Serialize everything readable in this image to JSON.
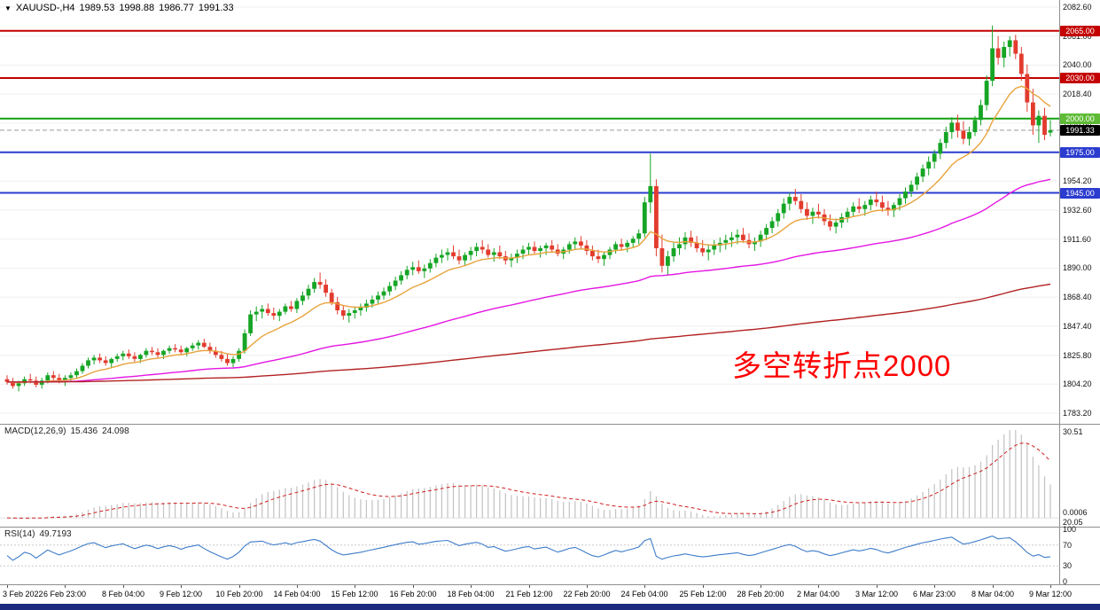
{
  "window": {
    "bottom_bar_color": "#1c2b7e"
  },
  "header": {
    "dropdown_icon": "▼",
    "symbol_period": "XAUUSD-,H4",
    "open": "1989.53",
    "high": "1998.88",
    "low": "1986.77",
    "close": "1991.33"
  },
  "chart_data": {
    "type": "candlestick",
    "symbol": "XAUUSD",
    "timeframe": "H4",
    "up_color": "#16a525",
    "down_color": "#e23b2e",
    "annotation": {
      "text": "多空转折点2000",
      "color": "#fe0000"
    },
    "y_axis": {
      "max": 2087.8,
      "min": 1774.0,
      "tick_labels": [
        "2082.60",
        "2061.00",
        "2040.00",
        "2018.40",
        "1996.80",
        "1975.20",
        "1954.20",
        "1932.60",
        "1911.60",
        "1890.00",
        "1868.40",
        "1847.40",
        "1825.80",
        "1804.20",
        "1783.20"
      ]
    },
    "x_axis": {
      "bars_per_label": 10,
      "tick_labels": [
        "3 Feb 2022",
        "6 Feb 23:00",
        "8 Feb 04:00",
        "9 Feb 12:00",
        "10 Feb 20:00",
        "14 Feb 04:00",
        "15 Feb 12:00",
        "16 Feb 20:00",
        "18 Feb 04:00",
        "21 Feb 12:00",
        "22 Feb 20:00",
        "24 Feb 04:00",
        "25 Feb 12:00",
        "28 Feb 20:00",
        "2 Mar 04:00",
        "3 Mar 12:00",
        "6 Mar 23:00",
        "8 Mar 04:00",
        "9 Mar 12:00"
      ]
    },
    "hlines": [
      {
        "price": 2065.0,
        "label": "2065.00",
        "color": "#c40000"
      },
      {
        "price": 2030.0,
        "label": "2030.00",
        "color": "#c40000"
      },
      {
        "price": 2000.0,
        "label": "2000.00",
        "color": "#12a112",
        "tag_color": "#5fbb36"
      },
      {
        "price": 1975.0,
        "label": "1975.00",
        "color": "#2b3ccf"
      },
      {
        "price": 1945.0,
        "label": "1945.00",
        "color": "#2b3ccf"
      },
      {
        "price": 1991.33,
        "label": "1991.33",
        "color": "#9b9b9b",
        "tag_color": "#000000",
        "style": "current"
      }
    ],
    "overlays": [
      {
        "name": "ma-fast",
        "type": "ema",
        "period": 13,
        "color": "#e8a33d"
      },
      {
        "name": "ma-medium",
        "type": "ema",
        "period": 80,
        "color": "#e316e3"
      },
      {
        "name": "ma-slow",
        "type": "ema",
        "period": 330,
        "color": "#b22222"
      }
    ],
    "indicators": [
      {
        "name": "macd",
        "label": "MACD(12,26,9)",
        "value_main": "15.436",
        "value_signal": "24.098",
        "params": [
          12,
          26,
          9
        ],
        "histogram_color": "#c2c2c2",
        "signal_color": "#cf2020",
        "axis_labels": [
          "30.51",
          "0.0006",
          "20.05"
        ]
      },
      {
        "name": "rsi",
        "label": "RSI(14)",
        "value": "49.7193",
        "period": 14,
        "line_color": "#3e7cc9",
        "levels": [
          70,
          30
        ],
        "axis_labels": [
          "100",
          "70",
          "30",
          "0"
        ]
      }
    ],
    "candles": [
      [
        1807,
        1810,
        1803,
        1805
      ],
      [
        1805,
        1808,
        1800,
        1802
      ],
      [
        1802,
        1806,
        1798,
        1804
      ],
      [
        1804,
        1809,
        1802,
        1807
      ],
      [
        1807,
        1811,
        1804,
        1806
      ],
      [
        1806,
        1809,
        1801,
        1803
      ],
      [
        1803,
        1808,
        1800,
        1806
      ],
      [
        1806,
        1812,
        1804,
        1810
      ],
      [
        1810,
        1813,
        1806,
        1808
      ],
      [
        1808,
        1811,
        1804,
        1806
      ],
      [
        1806,
        1810,
        1802,
        1808
      ],
      [
        1808,
        1812,
        1805,
        1810
      ],
      [
        1810,
        1815,
        1808,
        1813
      ],
      [
        1813,
        1819,
        1811,
        1817
      ],
      [
        1817,
        1823,
        1815,
        1821
      ],
      [
        1821,
        1825,
        1818,
        1823
      ],
      [
        1823,
        1826,
        1819,
        1821
      ],
      [
        1821,
        1824,
        1817,
        1819
      ],
      [
        1819,
        1823,
        1816,
        1822
      ],
      [
        1822,
        1826,
        1820,
        1824
      ],
      [
        1824,
        1828,
        1821,
        1826
      ],
      [
        1826,
        1829,
        1822,
        1824
      ],
      [
        1824,
        1827,
        1820,
        1822
      ],
      [
        1822,
        1826,
        1819,
        1825
      ],
      [
        1825,
        1830,
        1823,
        1828
      ],
      [
        1828,
        1831,
        1825,
        1827
      ],
      [
        1827,
        1830,
        1823,
        1825
      ],
      [
        1825,
        1829,
        1822,
        1828
      ],
      [
        1828,
        1832,
        1826,
        1830
      ],
      [
        1830,
        1833,
        1827,
        1829
      ],
      [
        1829,
        1832,
        1825,
        1827
      ],
      [
        1827,
        1831,
        1824,
        1830
      ],
      [
        1830,
        1834,
        1828,
        1832
      ],
      [
        1832,
        1836,
        1829,
        1834
      ],
      [
        1834,
        1837,
        1830,
        1831
      ],
      [
        1831,
        1834,
        1826,
        1828
      ],
      [
        1828,
        1831,
        1823,
        1825
      ],
      [
        1825,
        1828,
        1820,
        1822
      ],
      [
        1822,
        1826,
        1817,
        1819
      ],
      [
        1819,
        1824,
        1816,
        1822
      ],
      [
        1822,
        1830,
        1820,
        1828
      ],
      [
        1828,
        1844,
        1826,
        1841
      ],
      [
        1841,
        1858,
        1839,
        1855
      ],
      [
        1855,
        1861,
        1850,
        1857
      ],
      [
        1857,
        1862,
        1852,
        1859
      ],
      [
        1859,
        1863,
        1854,
        1856
      ],
      [
        1856,
        1860,
        1851,
        1854
      ],
      [
        1854,
        1859,
        1850,
        1857
      ],
      [
        1857,
        1863,
        1855,
        1861
      ],
      [
        1861,
        1865,
        1857,
        1859
      ],
      [
        1859,
        1867,
        1856,
        1865
      ],
      [
        1865,
        1872,
        1862,
        1869
      ],
      [
        1869,
        1877,
        1866,
        1874
      ],
      [
        1874,
        1882,
        1871,
        1879
      ],
      [
        1879,
        1886,
        1874,
        1877
      ],
      [
        1877,
        1881,
        1868,
        1871
      ],
      [
        1871,
        1874,
        1862,
        1864
      ],
      [
        1864,
        1868,
        1855,
        1858
      ],
      [
        1858,
        1862,
        1851,
        1854
      ],
      [
        1854,
        1859,
        1849,
        1856
      ],
      [
        1856,
        1861,
        1852,
        1858
      ],
      [
        1858,
        1863,
        1854,
        1860
      ],
      [
        1860,
        1866,
        1857,
        1863
      ],
      [
        1863,
        1869,
        1860,
        1866
      ],
      [
        1866,
        1872,
        1863,
        1869
      ],
      [
        1869,
        1875,
        1866,
        1872
      ],
      [
        1872,
        1879,
        1869,
        1876
      ],
      [
        1876,
        1883,
        1873,
        1880
      ],
      [
        1880,
        1887,
        1877,
        1884
      ],
      [
        1884,
        1891,
        1881,
        1888
      ],
      [
        1888,
        1894,
        1884,
        1890
      ],
      [
        1890,
        1895,
        1885,
        1887
      ],
      [
        1887,
        1892,
        1882,
        1889
      ],
      [
        1889,
        1896,
        1886,
        1893
      ],
      [
        1893,
        1900,
        1890,
        1897
      ],
      [
        1897,
        1903,
        1893,
        1899
      ],
      [
        1899,
        1904,
        1895,
        1901
      ],
      [
        1901,
        1906,
        1896,
        1898
      ],
      [
        1898,
        1903,
        1892,
        1895
      ],
      [
        1895,
        1901,
        1891,
        1899
      ],
      [
        1899,
        1905,
        1895,
        1902
      ],
      [
        1902,
        1908,
        1898,
        1905
      ],
      [
        1905,
        1910,
        1900,
        1903
      ],
      [
        1903,
        1907,
        1897,
        1899
      ],
      [
        1899,
        1904,
        1894,
        1901
      ],
      [
        1901,
        1906,
        1896,
        1898
      ],
      [
        1898,
        1902,
        1892,
        1895
      ],
      [
        1895,
        1900,
        1890,
        1897
      ],
      [
        1897,
        1903,
        1893,
        1900
      ],
      [
        1900,
        1906,
        1896,
        1903
      ],
      [
        1903,
        1908,
        1899,
        1905
      ],
      [
        1905,
        1909,
        1900,
        1902
      ],
      [
        1902,
        1906,
        1897,
        1904
      ],
      [
        1904,
        1908,
        1899,
        1906
      ],
      [
        1906,
        1910,
        1901,
        1903
      ],
      [
        1903,
        1907,
        1898,
        1900
      ],
      [
        1900,
        1905,
        1896,
        1903
      ],
      [
        1903,
        1909,
        1900,
        1907
      ],
      [
        1907,
        1912,
        1903,
        1909
      ],
      [
        1909,
        1913,
        1904,
        1906
      ],
      [
        1906,
        1910,
        1899,
        1902
      ],
      [
        1902,
        1906,
        1895,
        1898
      ],
      [
        1898,
        1903,
        1893,
        1896
      ],
      [
        1896,
        1901,
        1891,
        1899
      ],
      [
        1899,
        1905,
        1896,
        1903
      ],
      [
        1903,
        1909,
        1900,
        1907
      ],
      [
        1907,
        1911,
        1902,
        1905
      ],
      [
        1905,
        1910,
        1901,
        1908
      ],
      [
        1908,
        1913,
        1904,
        1911
      ],
      [
        1911,
        1918,
        1907,
        1915
      ],
      [
        1915,
        1942,
        1912,
        1938
      ],
      [
        1938,
        1974,
        1930,
        1950
      ],
      [
        1950,
        1955,
        1898,
        1904
      ],
      [
        1904,
        1914,
        1886,
        1891
      ],
      [
        1891,
        1902,
        1884,
        1898
      ],
      [
        1898,
        1908,
        1894,
        1904
      ],
      [
        1904,
        1912,
        1899,
        1907
      ],
      [
        1907,
        1916,
        1903,
        1912
      ],
      [
        1912,
        1917,
        1905,
        1908
      ],
      [
        1908,
        1913,
        1901,
        1904
      ],
      [
        1904,
        1910,
        1898,
        1901
      ],
      [
        1901,
        1907,
        1895,
        1903
      ],
      [
        1903,
        1910,
        1899,
        1906
      ],
      [
        1906,
        1912,
        1901,
        1908
      ],
      [
        1908,
        1914,
        1903,
        1910
      ],
      [
        1910,
        1916,
        1905,
        1912
      ],
      [
        1912,
        1918,
        1907,
        1914
      ],
      [
        1914,
        1919,
        1908,
        1910
      ],
      [
        1910,
        1915,
        1904,
        1907
      ],
      [
        1907,
        1912,
        1902,
        1909
      ],
      [
        1909,
        1917,
        1905,
        1914
      ],
      [
        1914,
        1922,
        1910,
        1919
      ],
      [
        1919,
        1927,
        1915,
        1924
      ],
      [
        1924,
        1933,
        1920,
        1930
      ],
      [
        1930,
        1941,
        1926,
        1937
      ],
      [
        1937,
        1945,
        1932,
        1942
      ],
      [
        1942,
        1948,
        1936,
        1939
      ],
      [
        1939,
        1944,
        1930,
        1933
      ],
      [
        1933,
        1938,
        1925,
        1928
      ],
      [
        1928,
        1934,
        1922,
        1931
      ],
      [
        1931,
        1937,
        1926,
        1929
      ],
      [
        1929,
        1933,
        1921,
        1924
      ],
      [
        1924,
        1929,
        1917,
        1920
      ],
      [
        1920,
        1926,
        1915,
        1923
      ],
      [
        1923,
        1930,
        1919,
        1927
      ],
      [
        1927,
        1934,
        1923,
        1931
      ],
      [
        1931,
        1938,
        1927,
        1935
      ],
      [
        1935,
        1941,
        1930,
        1933
      ],
      [
        1933,
        1939,
        1928,
        1936
      ],
      [
        1936,
        1943,
        1932,
        1940
      ],
      [
        1940,
        1946,
        1935,
        1938
      ],
      [
        1938,
        1943,
        1931,
        1934
      ],
      [
        1934,
        1939,
        1928,
        1932
      ],
      [
        1932,
        1938,
        1927,
        1936
      ],
      [
        1936,
        1944,
        1932,
        1941
      ],
      [
        1941,
        1949,
        1937,
        1946
      ],
      [
        1946,
        1954,
        1942,
        1951
      ],
      [
        1951,
        1960,
        1947,
        1957
      ],
      [
        1957,
        1966,
        1953,
        1963
      ],
      [
        1963,
        1972,
        1958,
        1968
      ],
      [
        1968,
        1977,
        1963,
        1974
      ],
      [
        1974,
        1985,
        1970,
        1982
      ],
      [
        1982,
        1994,
        1978,
        1990
      ],
      [
        1990,
        2001,
        1985,
        1997
      ],
      [
        1997,
        2003,
        1986,
        1991
      ],
      [
        1991,
        1998,
        1981,
        1985
      ],
      [
        1985,
        1994,
        1980,
        1990
      ],
      [
        1990,
        2002,
        1987,
        1999
      ],
      [
        1999,
        2014,
        1995,
        2010
      ],
      [
        2010,
        2032,
        2006,
        2028
      ],
      [
        2028,
        2069,
        2024,
        2052
      ],
      [
        2052,
        2061,
        2040,
        2045
      ],
      [
        2045,
        2057,
        2038,
        2053
      ],
      [
        2053,
        2061,
        2046,
        2058
      ],
      [
        2058,
        2062,
        2044,
        2048
      ],
      [
        2048,
        2053,
        2028,
        2033
      ],
      [
        2033,
        2040,
        2005,
        2012
      ],
      [
        2012,
        2022,
        1988,
        1995
      ],
      [
        1995,
        2006,
        1982,
        2002
      ],
      [
        2002,
        2008,
        1984,
        1988
      ],
      [
        1989.53,
        1998.88,
        1986.77,
        1991.33
      ]
    ]
  }
}
